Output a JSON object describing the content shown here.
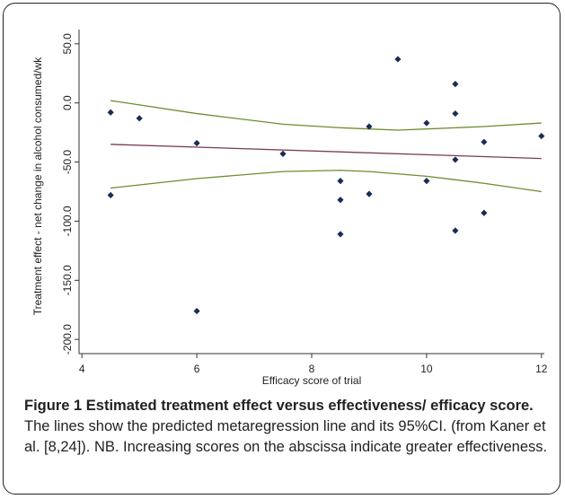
{
  "chart_data": {
    "type": "scatter",
    "xlabel": "Efficacy score of trial",
    "ylabel": "Treatment effect - net change in alcohol consumed/wk",
    "xlim": [
      3.95,
      12.05
    ],
    "ylim": [
      -212,
      62
    ],
    "x_ticks": [
      4,
      6,
      8,
      10,
      12
    ],
    "y_ticks": [
      50.0,
      0.0,
      -50.0,
      -100.0,
      -150.0,
      -200.0
    ],
    "y_tick_labels": [
      "50.0",
      "0.0",
      "-50.0",
      "-100.0",
      "-150.0",
      "-200.0"
    ],
    "points": [
      {
        "x": 4.5,
        "y": -8
      },
      {
        "x": 4.5,
        "y": -78
      },
      {
        "x": 5.0,
        "y": -13
      },
      {
        "x": 6.0,
        "y": -34
      },
      {
        "x": 6.0,
        "y": -176
      },
      {
        "x": 7.5,
        "y": -43
      },
      {
        "x": 8.5,
        "y": -66
      },
      {
        "x": 8.5,
        "y": -82
      },
      {
        "x": 8.5,
        "y": -111
      },
      {
        "x": 9.0,
        "y": -20
      },
      {
        "x": 9.0,
        "y": -77
      },
      {
        "x": 9.5,
        "y": 37
      },
      {
        "x": 10.0,
        "y": -17
      },
      {
        "x": 10.0,
        "y": -66
      },
      {
        "x": 10.5,
        "y": 16
      },
      {
        "x": 10.5,
        "y": -9
      },
      {
        "x": 10.5,
        "y": -48
      },
      {
        "x": 10.5,
        "y": -108
      },
      {
        "x": 11.0,
        "y": -33
      },
      {
        "x": 11.0,
        "y": -93
      },
      {
        "x": 12.0,
        "y": -28
      }
    ],
    "series": [
      {
        "name": "",
        "color": "#7a3b5a",
        "x": [
          4.5,
          12.0
        ],
        "values": [
          -35,
          -47
        ]
      },
      {
        "name": "",
        "color": "#6e8c2e",
        "x": [
          4.5,
          6.0,
          7.5,
          8.5,
          9.0,
          9.5,
          10.0,
          10.5,
          11.0,
          12.0
        ],
        "values": [
          2,
          -9,
          -18,
          -21,
          -22,
          -23,
          -22,
          -21,
          -20,
          -17
        ]
      },
      {
        "name": "",
        "color": "#6e8c2e",
        "x": [
          4.5,
          6.0,
          7.5,
          8.5,
          9.0,
          9.5,
          10.0,
          10.5,
          11.0,
          12.0
        ],
        "values": [
          -72,
          -64,
          -58,
          -57,
          -58,
          -60,
          -62,
          -65,
          -68,
          -75
        ]
      }
    ],
    "grid": false,
    "point_color": "#1a2e52"
  },
  "caption": {
    "bold": "Figure 1 Estimated treatment effect versus effectiveness/ efficacy score.",
    "text": " The lines show the predicted metaregression line and its 95%CI. (from Kaner et al. [8,24]). NB. Increasing scores on the abscissa indicate greater effectiveness."
  }
}
